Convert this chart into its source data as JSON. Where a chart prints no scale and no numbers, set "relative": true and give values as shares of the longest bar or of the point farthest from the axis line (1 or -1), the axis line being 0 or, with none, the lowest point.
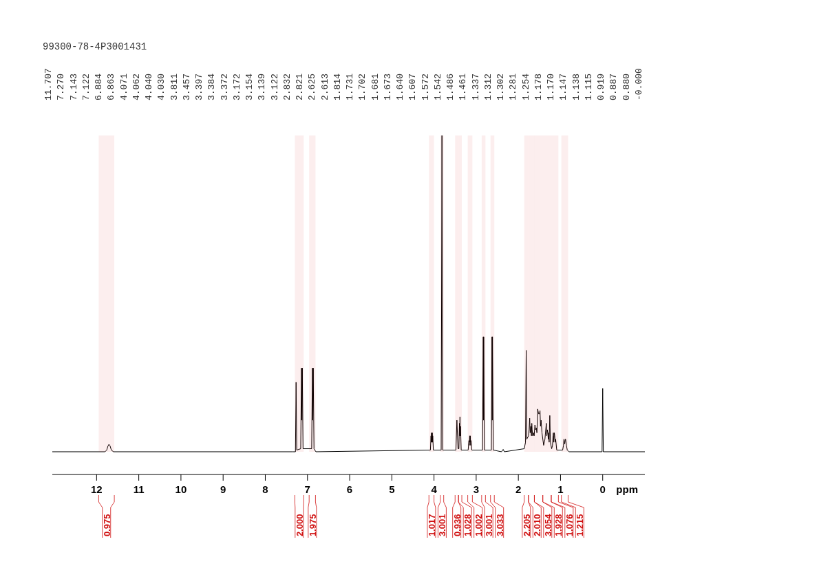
{
  "chart_data": {
    "type": "line",
    "title": "99300-78-4P3001431",
    "xlabel": "ppm",
    "relative": true,
    "grid": false,
    "marker": "none",
    "line_style": "solid",
    "xlim": [
      13.05,
      -1.0
    ],
    "xticks": [
      12,
      11,
      10,
      9,
      8,
      7,
      6,
      5,
      4,
      3,
      2,
      1,
      0
    ],
    "series": [
      {
        "color": "#000000",
        "x": [
          13.05,
          11.8,
          11.76,
          11.73,
          11.707,
          11.68,
          11.65,
          11.6,
          7.35,
          7.285,
          7.27,
          7.255,
          7.16,
          7.143,
          7.132,
          7.122,
          7.105,
          6.9,
          6.884,
          6.874,
          6.863,
          6.845,
          6.8,
          4.085,
          4.071,
          4.066,
          4.062,
          4.051,
          4.04,
          4.035,
          4.03,
          4.015,
          3.83,
          3.811,
          3.795,
          3.48,
          3.457,
          3.43,
          3.41,
          3.397,
          3.39,
          3.384,
          3.378,
          3.372,
          3.355,
          3.19,
          3.172,
          3.163,
          3.154,
          3.147,
          3.139,
          3.13,
          3.122,
          3.105,
          2.85,
          2.832,
          2.826,
          2.821,
          2.805,
          2.64,
          2.625,
          2.619,
          2.613,
          2.595,
          2.4,
          2.36,
          2.33,
          1.86,
          1.83,
          1.814,
          1.8,
          1.76,
          1.745,
          1.731,
          1.72,
          1.702,
          1.69,
          1.681,
          1.673,
          1.66,
          1.64,
          1.625,
          1.607,
          1.59,
          1.572,
          1.56,
          1.542,
          1.52,
          1.5,
          1.486,
          1.475,
          1.461,
          1.44,
          1.4,
          1.37,
          1.337,
          1.325,
          1.312,
          1.302,
          1.29,
          1.281,
          1.27,
          1.254,
          1.24,
          1.21,
          1.19,
          1.178,
          1.17,
          1.16,
          1.147,
          1.138,
          1.125,
          1.115,
          1.09,
          0.95,
          0.93,
          0.919,
          0.9,
          0.887,
          0.88,
          0.86,
          0.84,
          0.8,
          0.015,
          0,
          -0.015,
          -1.0
        ],
        "values": [
          0.067,
          0.067,
          0.072,
          0.084,
          0.089,
          0.084,
          0.072,
          0.067,
          0.067,
          0.067,
          0.272,
          0.072,
          0.076,
          0.314,
          0.16,
          0.314,
          0.076,
          0.076,
          0.314,
          0.16,
          0.314,
          0.076,
          0.067,
          0.072,
          0.114,
          0.095,
          0.123,
          0.095,
          0.123,
          0.095,
          0.114,
          0.072,
          0.072,
          1.0,
          0.072,
          0.072,
          0.16,
          0.076,
          0.076,
          0.151,
          0.114,
          0.17,
          0.114,
          0.142,
          0.072,
          0.072,
          0.1,
          0.086,
          0.114,
          0.095,
          0.114,
          0.086,
          0.1,
          0.072,
          0.072,
          0.406,
          0.16,
          0.406,
          0.072,
          0.072,
          0.406,
          0.16,
          0.406,
          0.072,
          0.067,
          0.074,
          0.067,
          0.076,
          0.095,
          0.366,
          0.104,
          0.114,
          0.132,
          0.166,
          0.123,
          0.142,
          0.114,
          0.151,
          0.132,
          0.114,
          0.123,
          0.114,
          0.146,
          0.132,
          0.137,
          0.123,
          0.193,
          0.179,
          0.179,
          0.188,
          0.142,
          0.16,
          0.123,
          0.086,
          0.104,
          0.151,
          0.114,
          0.132,
          0.123,
          0.104,
          0.123,
          0.095,
          0.174,
          0.095,
          0.076,
          0.086,
          0.114,
          0.123,
          0.095,
          0.123,
          0.114,
          0.095,
          0.104,
          0.072,
          0.072,
          0.086,
          0.104,
          0.09,
          0.104,
          0.104,
          0.086,
          0.072,
          0.067,
          0.067,
          0.254,
          0.067,
          0.067
        ]
      }
    ],
    "annotations": [
      "11.707",
      "7.270",
      "7.143",
      "7.122",
      "6.884",
      "6.863",
      "4.071",
      "4.062",
      "4.040",
      "4.030",
      "3.811",
      "3.457",
      "3.397",
      "3.384",
      "3.372",
      "3.172",
      "3.154",
      "3.139",
      "3.122",
      "2.832",
      "2.821",
      "2.625",
      "2.613",
      "1.814",
      "1.731",
      "1.702",
      "1.681",
      "1.673",
      "1.640",
      "1.607",
      "1.572",
      "1.542",
      "1.486",
      "1.461",
      "1.337",
      "1.312",
      "1.302",
      "1.281",
      "1.254",
      "1.178",
      "1.170",
      "1.147",
      "1.138",
      "1.115",
      "0.919",
      "0.887",
      "0.880",
      "-0.000"
    ],
    "bands": [
      {
        "axis": "x",
        "from": 11.95,
        "to": 11.58,
        "label": "0.975",
        "color": "#d01010"
      },
      {
        "axis": "x",
        "from": 7.3,
        "to": 7.09,
        "label": "2.000",
        "color": "#d01010"
      },
      {
        "axis": "x",
        "from": 6.96,
        "to": 6.81,
        "label": "1.975",
        "color": "#d01010"
      },
      {
        "axis": "x",
        "from": 4.12,
        "to": 4.0,
        "label": "1.017",
        "color": "#d01010"
      },
      {
        "axis": "x",
        "from": 3.85,
        "to": 3.77,
        "label": "3.001",
        "color": "#d01010"
      },
      {
        "axis": "x",
        "from": 3.5,
        "to": 3.42,
        "label": "0.936",
        "color": "#d01010"
      },
      {
        "axis": "x",
        "from": 3.42,
        "to": 3.34,
        "label": "1.028",
        "color": "#d01010"
      },
      {
        "axis": "x",
        "from": 3.2,
        "to": 3.09,
        "label": "1.002",
        "color": "#d01010"
      },
      {
        "axis": "x",
        "from": 2.87,
        "to": 2.78,
        "label": "3.001",
        "color": "#d01010"
      },
      {
        "axis": "x",
        "from": 2.66,
        "to": 2.57,
        "label": "3.033",
        "color": "#d01010"
      },
      {
        "axis": "x",
        "from": 1.86,
        "to": 1.76,
        "label": "2.205",
        "color": "#d01010"
      },
      {
        "axis": "x",
        "from": 1.76,
        "to": 1.62,
        "label": "2.010",
        "color": "#d01010"
      },
      {
        "axis": "x",
        "from": 1.62,
        "to": 1.42,
        "label": "3.054",
        "color": "#d01010"
      },
      {
        "axis": "x",
        "from": 1.42,
        "to": 1.22,
        "label": "1.928",
        "color": "#d01010"
      },
      {
        "axis": "x",
        "from": 1.22,
        "to": 1.05,
        "label": "1.076",
        "color": "#d01010"
      },
      {
        "axis": "x",
        "from": 0.98,
        "to": 0.82,
        "label": "1.215",
        "color": "#d01010"
      }
    ]
  }
}
